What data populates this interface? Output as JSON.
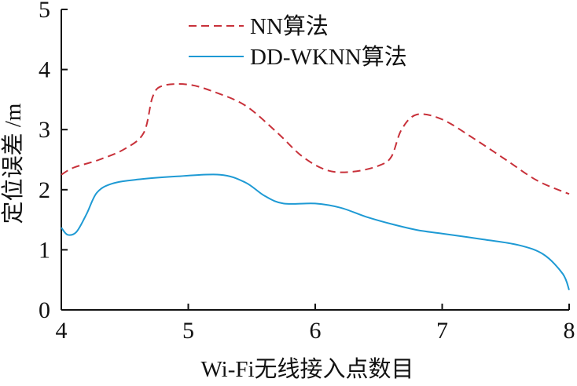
{
  "chart_data": {
    "type": "line",
    "title": "",
    "xlabel": "Wi-Fi无线接入点数目",
    "ylabel": "定位误差 /m",
    "xlim": [
      4,
      8
    ],
    "ylim": [
      0,
      5
    ],
    "xticks": [
      "4",
      "5",
      "6",
      "7",
      "8"
    ],
    "yticks": [
      "0",
      "1",
      "2",
      "3",
      "4",
      "5"
    ],
    "grid": false,
    "legend_position": "top-center",
    "series": [
      {
        "name": "NN算法",
        "color": "#c8313a",
        "style": "dashed",
        "x": [
          4.0,
          4.1,
          4.3,
          4.5,
          4.65,
          4.72,
          4.8,
          5.0,
          5.2,
          5.45,
          5.7,
          5.9,
          6.1,
          6.3,
          6.5,
          6.6,
          6.68,
          6.8,
          7.0,
          7.25,
          7.5,
          7.75,
          8.0
        ],
        "values": [
          2.25,
          2.37,
          2.5,
          2.68,
          2.95,
          3.55,
          3.73,
          3.75,
          3.63,
          3.4,
          2.95,
          2.55,
          2.32,
          2.3,
          2.4,
          2.55,
          3.0,
          3.25,
          3.17,
          2.85,
          2.5,
          2.15,
          1.93
        ]
      },
      {
        "name": "DD-WKNN算法",
        "color": "#1e9ad4",
        "style": "solid",
        "x": [
          4.0,
          4.05,
          4.12,
          4.2,
          4.28,
          4.4,
          4.6,
          4.9,
          5.25,
          5.45,
          5.6,
          5.75,
          6.0,
          6.2,
          6.4,
          6.6,
          6.8,
          7.0,
          7.3,
          7.6,
          7.8,
          7.95,
          8.0
        ],
        "values": [
          1.37,
          1.25,
          1.3,
          1.6,
          1.95,
          2.1,
          2.17,
          2.22,
          2.25,
          2.12,
          1.9,
          1.77,
          1.77,
          1.7,
          1.55,
          1.43,
          1.33,
          1.27,
          1.18,
          1.08,
          0.92,
          0.6,
          0.33
        ]
      }
    ]
  }
}
